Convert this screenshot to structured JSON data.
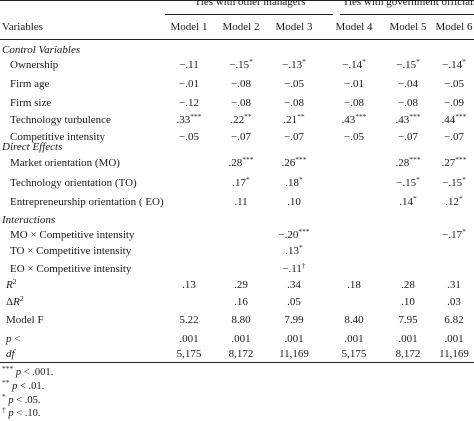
{
  "group_headers": [
    "Ties with other managers",
    "Ties with government officials"
  ],
  "stub_header": "Variables",
  "models": [
    "Model 1",
    "Model 2",
    "Model 3",
    "Model 4",
    "Model 5",
    "Model 6"
  ],
  "sections": {
    "control": "Control Variables",
    "direct": "Direct Effects",
    "interactions": "Interactions"
  },
  "rows": [
    {
      "label": "Ownership",
      "cells": [
        "−.11",
        "−.15*",
        "−.13*",
        "−.14*",
        "−.15*",
        "−.14*"
      ]
    },
    {
      "label": "Firm age",
      "cells": [
        "−.01",
        "−.08",
        "−.05",
        "−.01",
        "−.04",
        "−.05"
      ]
    },
    {
      "label": "Firm size",
      "cells": [
        "−.12",
        "−.08",
        "−.08",
        "−.08",
        "−.08",
        "−.09"
      ]
    },
    {
      "label": "Technology turbulence",
      "cells": [
        ".33***",
        ".22**",
        ".21**",
        ".43***",
        ".43***",
        ".44***"
      ]
    },
    {
      "label": "Competitive intensity",
      "cells": [
        "−.05",
        "−.07",
        "−.07",
        "−.05",
        "−.07",
        "−.07"
      ]
    },
    {
      "label": "Market orientation (MO)",
      "cells": [
        "",
        ".28***",
        ".26***",
        "",
        ".28***",
        ".27***"
      ]
    },
    {
      "label": "Technology orientation (TO)",
      "cells": [
        "",
        ".17*",
        ".18*",
        "",
        "−.15*",
        "−.15*"
      ]
    },
    {
      "label": "Entrepreneurship orientation ( EO)",
      "cells": [
        "",
        ".11",
        ".10",
        "",
        ".14*",
        ".12*"
      ]
    },
    {
      "label": "MO × Competitive intensity",
      "cells": [
        "",
        "",
        "−.20***",
        "",
        "",
        "−.17*"
      ]
    },
    {
      "label": "TO × Competitive intensity",
      "cells": [
        "",
        "",
        ".13*",
        "",
        "",
        ""
      ]
    },
    {
      "label": "EO × Competitive intensity",
      "cells": [
        "",
        "",
        "−.11†",
        "",
        "",
        ""
      ]
    }
  ],
  "stats": [
    {
      "label": "R",
      "sup": "2",
      "cells": [
        ".13",
        ".29",
        ".34",
        ".18",
        ".28",
        ".31"
      ]
    },
    {
      "label": "ΔR",
      "sup": "2",
      "cells": [
        "",
        ".16",
        ".05",
        "",
        ".10",
        ".03"
      ]
    },
    {
      "label": "Model F",
      "sup": "",
      "cells": [
        "5.22",
        "8.80",
        "7.99",
        "8.40",
        "7.95",
        "6.82"
      ]
    },
    {
      "label": "p <",
      "sup": "",
      "cells": [
        ".001",
        ".001",
        ".001",
        ".001",
        ".001",
        ".001"
      ]
    },
    {
      "label": "df",
      "sup": "",
      "cells": [
        "5,175",
        "8,172",
        "11,169",
        "5,175",
        "8,172",
        "11,169"
      ]
    }
  ],
  "footnotes": [
    {
      "mark": "***",
      "text": "p < .001."
    },
    {
      "mark": "**",
      "text": "p < .01."
    },
    {
      "mark": "*",
      "text": "p < .05."
    },
    {
      "mark": "†",
      "text": "p < .10."
    }
  ]
}
